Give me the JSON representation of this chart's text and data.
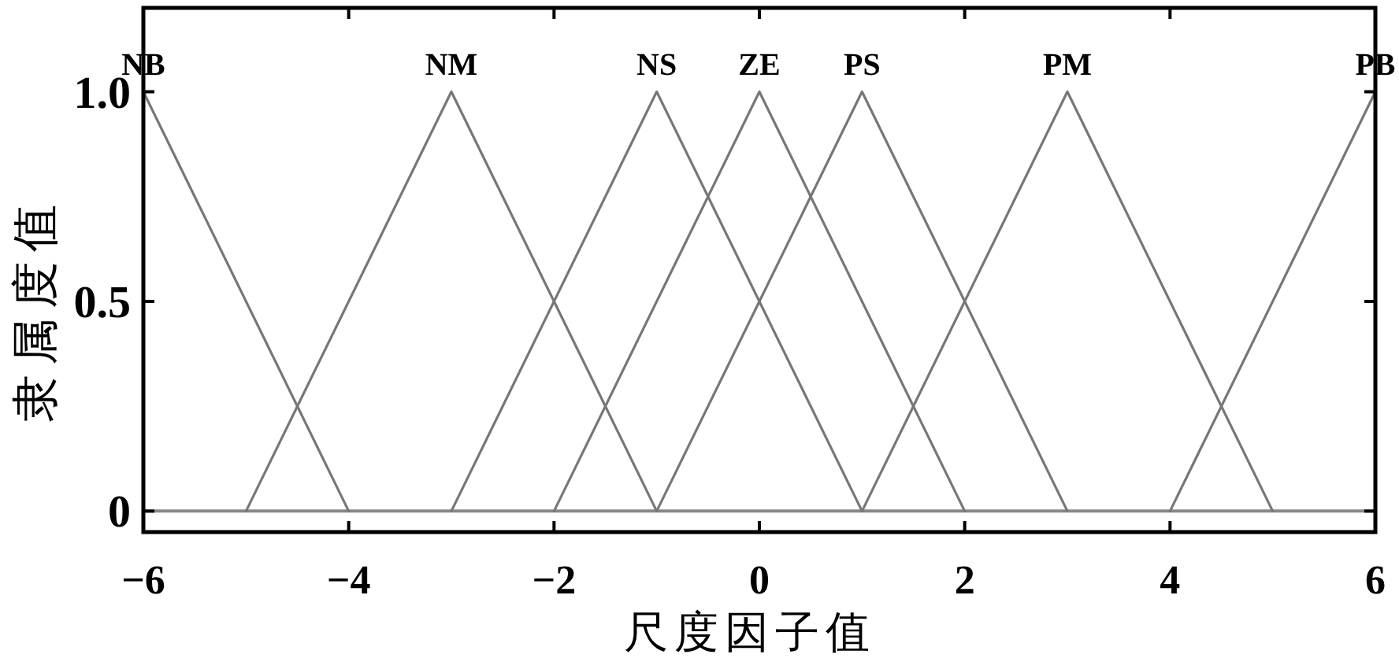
{
  "chart_data": {
    "type": "line",
    "xlabel": "尺度因子值",
    "ylabel": "隶属度值",
    "xlim": [
      -6,
      6
    ],
    "ylim": [
      -0.05,
      1.2
    ],
    "xticks": [
      {
        "value": -6,
        "label": "−6"
      },
      {
        "value": -4,
        "label": "−4"
      },
      {
        "value": -2,
        "label": "−2"
      },
      0,
      2,
      4,
      6
    ],
    "yticks": [
      0,
      0.5,
      {
        "value": 1,
        "label": "1.0"
      }
    ],
    "line_style": "solid",
    "ref_lines": [
      {
        "axis": "y",
        "value": 0,
        "color": "#888888"
      }
    ],
    "series": [
      {
        "name": "NB",
        "color": "#777777",
        "x": [
          -6,
          -4
        ],
        "values": [
          1,
          0
        ]
      },
      {
        "name": "NM",
        "color": "#777777",
        "x": [
          -5,
          -3,
          -1
        ],
        "values": [
          0,
          1,
          0
        ]
      },
      {
        "name": "NS",
        "color": "#777777",
        "x": [
          -3,
          -1,
          1
        ],
        "values": [
          0,
          1,
          0
        ]
      },
      {
        "name": "ZE",
        "color": "#777777",
        "x": [
          -2,
          0,
          2
        ],
        "values": [
          0,
          1,
          0
        ]
      },
      {
        "name": "PS",
        "color": "#777777",
        "x": [
          -1,
          1,
          3
        ],
        "values": [
          0,
          1,
          0
        ]
      },
      {
        "name": "PM",
        "color": "#777777",
        "x": [
          1,
          3,
          5
        ],
        "values": [
          0,
          1,
          0
        ]
      },
      {
        "name": "PB",
        "color": "#777777",
        "x": [
          4,
          6
        ],
        "values": [
          0,
          1
        ]
      }
    ]
  }
}
